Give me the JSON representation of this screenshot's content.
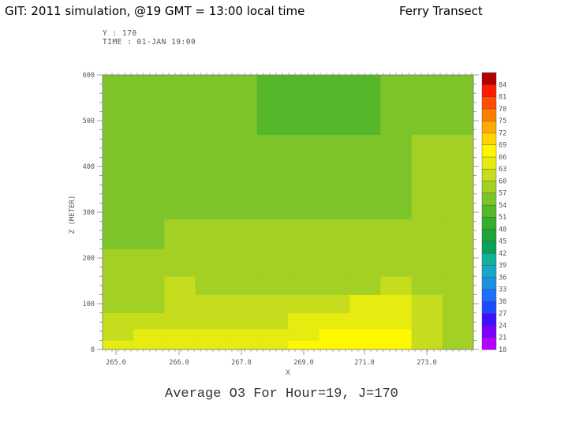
{
  "slide": {
    "title_left": "GIT: 2011 simulation, @19 GMT = 13:00 local time",
    "title_right": "Ferry Transect"
  },
  "plot_header": {
    "y_line": "Y : 170",
    "time_line": "TIME : 01-JAN 19:00"
  },
  "caption": "Average O3 For Hour=19, J=170",
  "chart_data": {
    "type": "heatmap",
    "title": "Average O3 For Hour=19, J=170",
    "xlabel": "X",
    "ylabel": "Z (METER)",
    "x_ticks": [
      "265.0",
      "266.0",
      "267.0",
      "269.0",
      "271.0",
      "273.0"
    ],
    "y_ticks": [
      "0",
      "100",
      "200",
      "300",
      "400",
      "500",
      "600"
    ],
    "ylim": [
      0,
      600
    ],
    "x_cells": [
      "x-0",
      "x-1",
      "x-2",
      "x-3",
      "x-4",
      "x-5",
      "x-6",
      "x-7",
      "x-8",
      "x-9",
      "x-10",
      "x-11"
    ],
    "z_levels": [
      {
        "bottom": 0,
        "top": 20,
        "values": [
          63.6,
          64.5,
          65.3,
          65.2,
          65.6,
          65.2,
          67.0,
          67.8,
          67.7,
          68.3,
          60.9,
          58.8
        ]
      },
      {
        "bottom": 20,
        "top": 45,
        "values": [
          62.9,
          63.2,
          63.9,
          64.4,
          64.1,
          64.1,
          65.9,
          67.2,
          66.9,
          66.4,
          60.3,
          57.6
        ]
      },
      {
        "bottom": 45,
        "top": 80,
        "values": [
          61.3,
          61.3,
          62.6,
          62.9,
          62.7,
          62.8,
          64.4,
          65.6,
          65.3,
          64.8,
          61.3,
          57.1
        ]
      },
      {
        "bottom": 80,
        "top": 120,
        "values": [
          59.2,
          58.8,
          62.0,
          61.0,
          61.1,
          60.2,
          60.4,
          62.5,
          63.0,
          64.2,
          60.3,
          57.7
        ]
      },
      {
        "bottom": 120,
        "top": 160,
        "values": [
          59.1,
          59.0,
          60.1,
          59.2,
          59.3,
          59.2,
          59.2,
          59.3,
          59.8,
          61.0,
          59.9,
          57.8
        ]
      },
      {
        "bottom": 160,
        "top": 220,
        "values": [
          57.4,
          57.3,
          58.4,
          58.2,
          58.1,
          58.1,
          58.5,
          58.6,
          58.6,
          58.9,
          59.3,
          58.1
        ]
      },
      {
        "bottom": 220,
        "top": 285,
        "values": [
          56.0,
          56.5,
          57.3,
          57.3,
          57.4,
          57.3,
          57.4,
          57.3,
          57.6,
          57.6,
          58.4,
          58.5
        ]
      },
      {
        "bottom": 285,
        "top": 345,
        "values": [
          55.6,
          55.8,
          56.8,
          56.7,
          56.5,
          56.3,
          56.4,
          56.6,
          56.7,
          56.8,
          57.2,
          57.4
        ]
      },
      {
        "bottom": 345,
        "top": 405,
        "values": [
          55.2,
          55.4,
          56.4,
          56.6,
          56.2,
          56.2,
          56.3,
          56.4,
          56.6,
          56.5,
          57.2,
          57.1
        ]
      },
      {
        "bottom": 405,
        "top": 470,
        "values": [
          54.9,
          54.9,
          56.0,
          56.1,
          56.0,
          55.9,
          56.0,
          56.0,
          56.3,
          56.2,
          57.2,
          57.1
        ]
      },
      {
        "bottom": 470,
        "top": 530,
        "values": [
          55.1,
          54.2,
          54.4,
          55.5,
          55.7,
          53.3,
          53.5,
          53.6,
          53.8,
          55.6,
          56.5,
          56.8
        ]
      },
      {
        "bottom": 530,
        "top": 600,
        "values": [
          55.0,
          55.1,
          55.3,
          55.3,
          54.7,
          53.6,
          53.7,
          53.9,
          53.6,
          54.4,
          55.9,
          56.6
        ]
      }
    ],
    "colorbar": {
      "labels": [
        "18",
        "21",
        "24",
        "27",
        "30",
        "33",
        "36",
        "39",
        "42",
        "45",
        "48",
        "51",
        "54",
        "57",
        "60",
        "63",
        "66",
        "69",
        "72",
        "75",
        "78",
        "81",
        "84"
      ],
      "min": 18,
      "max": 87,
      "step": 3,
      "colors": [
        "#b700ff",
        "#7a00ff",
        "#3f10ff",
        "#1f4bff",
        "#1d6fff",
        "#1d8fe0",
        "#18a5c8",
        "#10b29a",
        "#09a15a",
        "#1fa43a",
        "#35ae2e",
        "#55b82a",
        "#7dc42a",
        "#a2d025",
        "#c6dd1e",
        "#e6eb10",
        "#fff700",
        "#ffd400",
        "#ffaa00",
        "#ff7d00",
        "#ff4e00",
        "#ff1a00",
        "#b20000"
      ]
    }
  }
}
